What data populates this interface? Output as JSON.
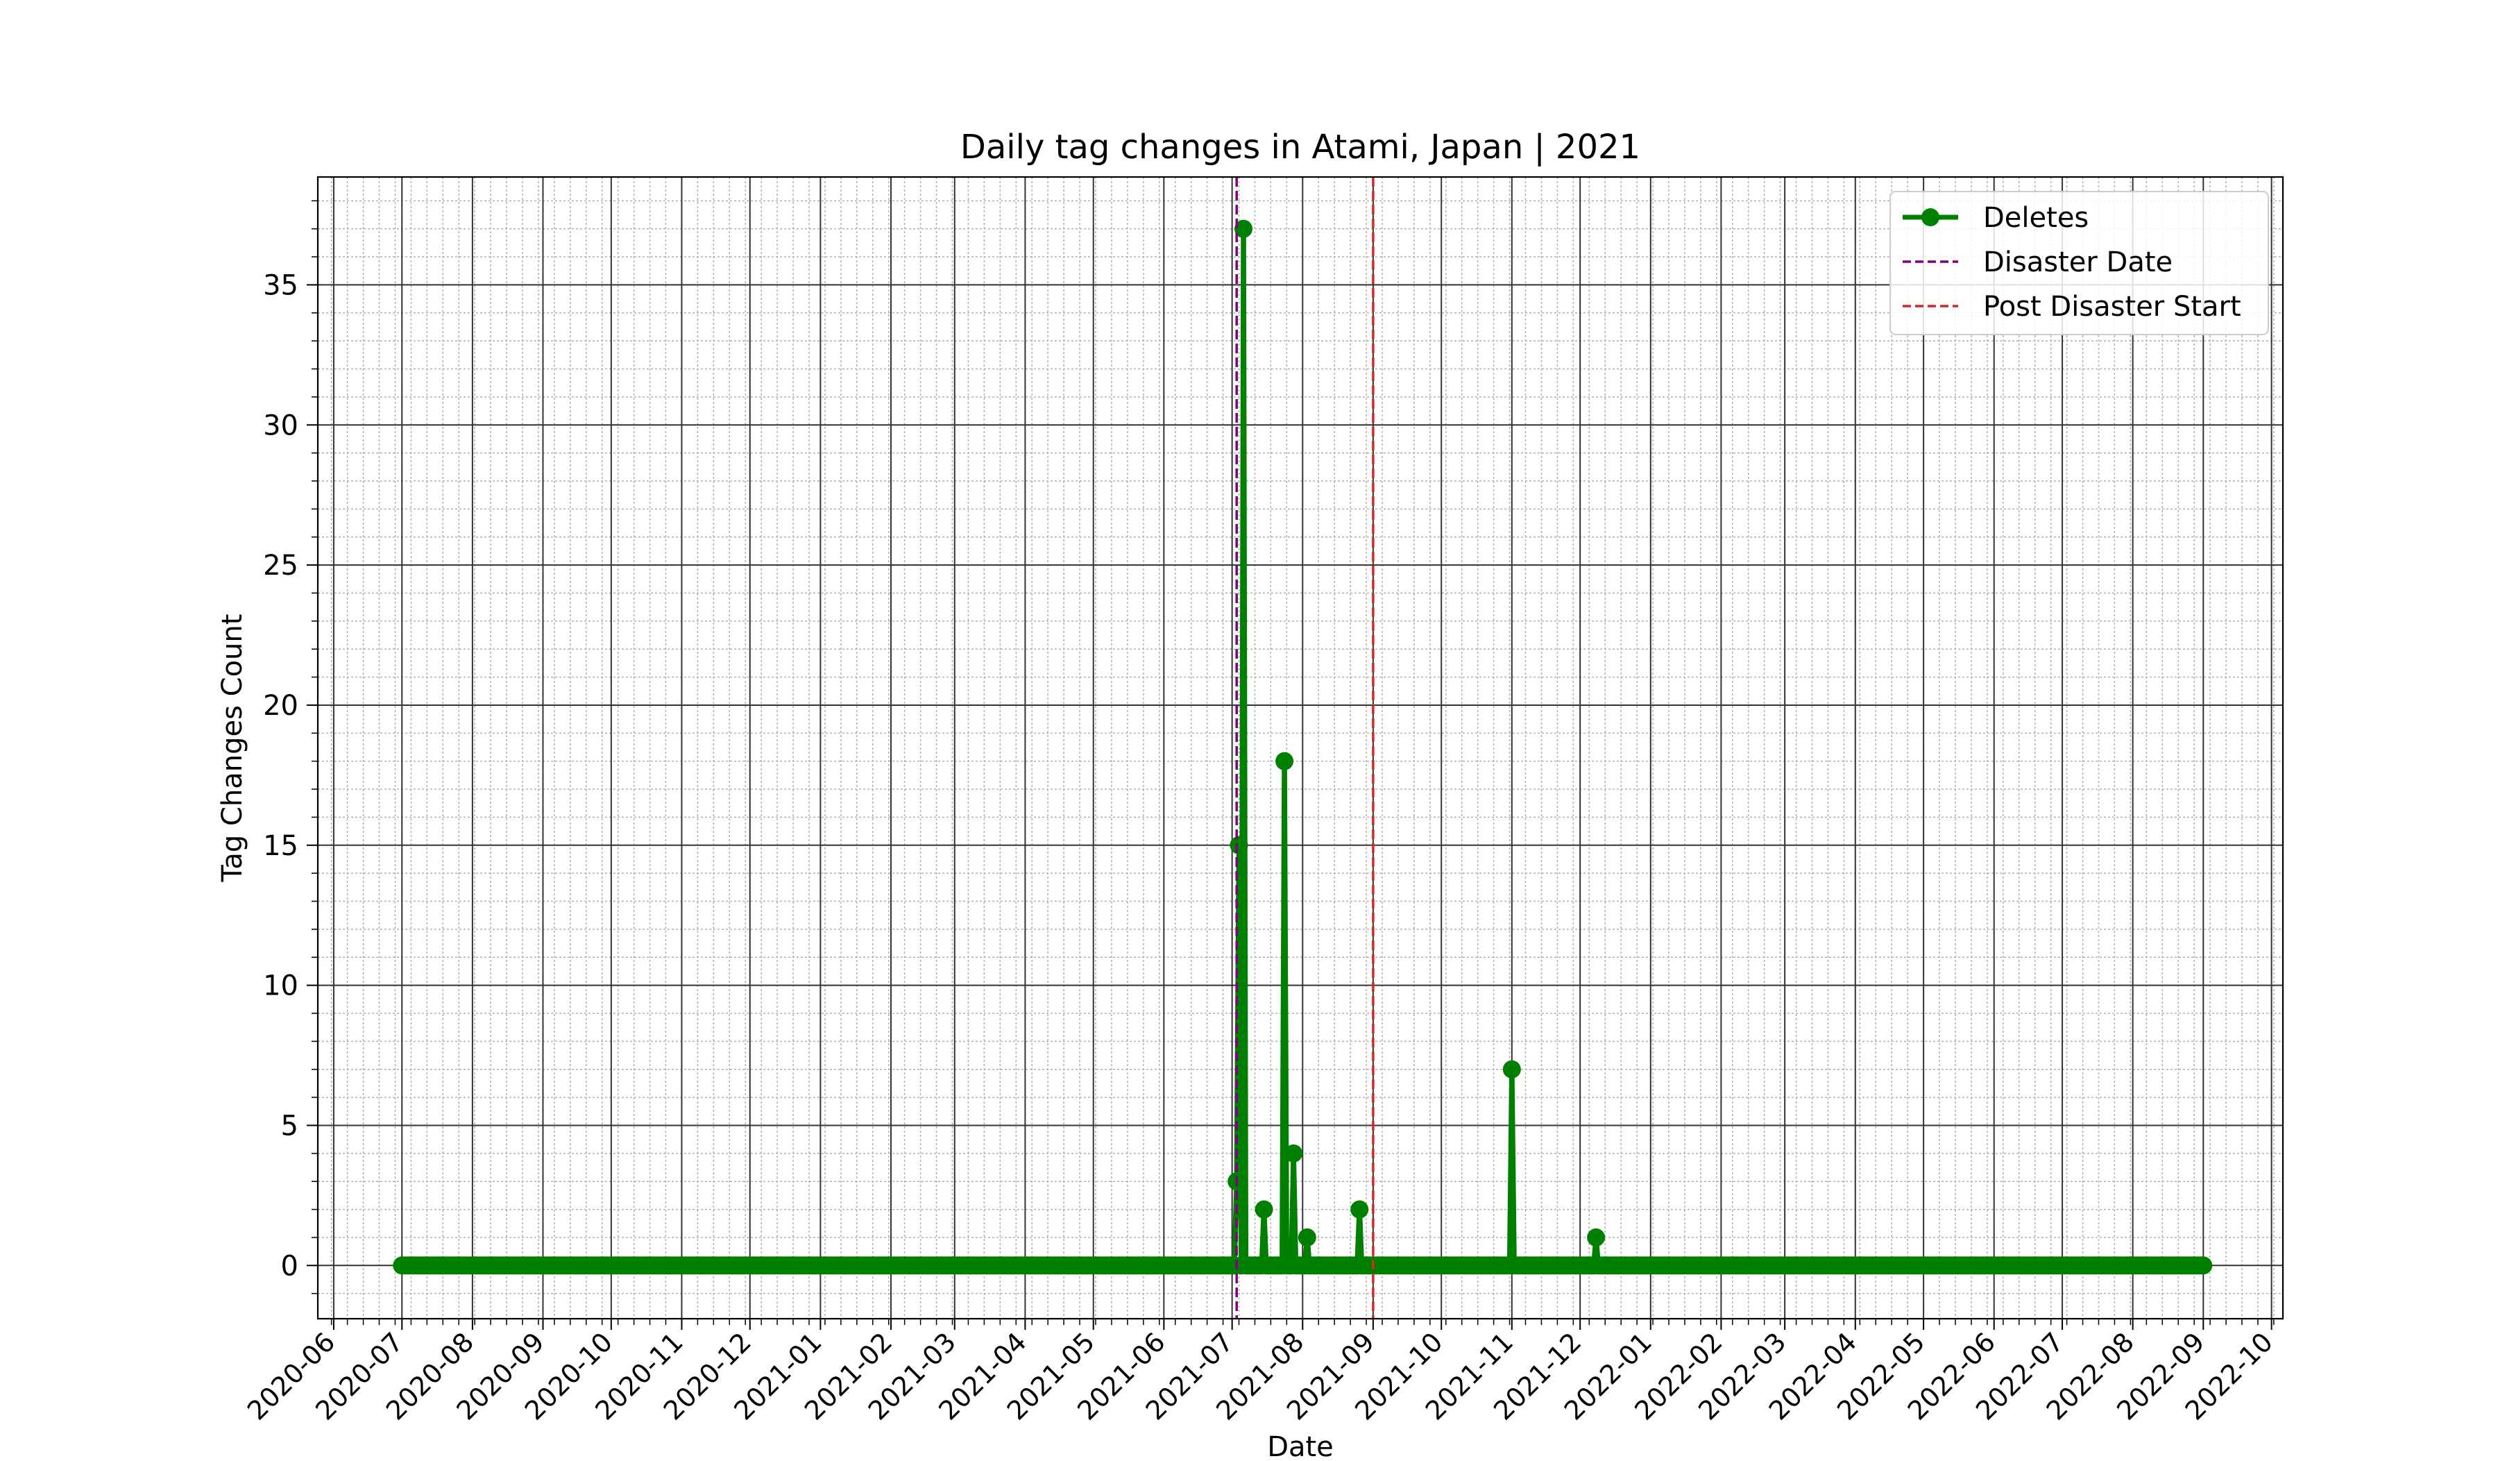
{
  "chart_data": {
    "type": "line",
    "title": "Daily tag changes in Atami, Japan | 2021",
    "xlabel": "Date",
    "ylabel": "Tag Changes Count",
    "xlim": [
      "2020-05-25",
      "2022-10-06"
    ],
    "ylim": [
      -1.9,
      38.85
    ],
    "x_range_daily": [
      "2020-07-01",
      "2022-09-01"
    ],
    "baseline_value": 0,
    "x_ticks": [
      "2020-06",
      "2020-07",
      "2020-08",
      "2020-09",
      "2020-10",
      "2020-11",
      "2020-12",
      "2021-01",
      "2021-02",
      "2021-03",
      "2021-04",
      "2021-05",
      "2021-06",
      "2021-07",
      "2021-08",
      "2021-09",
      "2021-10",
      "2021-11",
      "2021-12",
      "2022-01",
      "2022-02",
      "2022-03",
      "2022-04",
      "2022-05",
      "2022-06",
      "2022-07",
      "2022-08",
      "2022-09",
      "2022-10"
    ],
    "y_ticks": [
      0,
      5,
      10,
      15,
      20,
      25,
      30,
      35
    ],
    "y_minor_step": 1,
    "grid": true,
    "legend_position": "top-right",
    "series": [
      {
        "name": "Deletes",
        "color": "#008000",
        "marker": "circle",
        "nonzero_points": [
          {
            "x": "2021-07-03",
            "y": 3
          },
          {
            "x": "2021-07-04",
            "y": 15
          },
          {
            "x": "2021-07-06",
            "y": 37
          },
          {
            "x": "2021-07-15",
            "y": 2
          },
          {
            "x": "2021-07-24",
            "y": 18
          },
          {
            "x": "2021-07-28",
            "y": 4
          },
          {
            "x": "2021-08-03",
            "y": 1
          },
          {
            "x": "2021-08-26",
            "y": 2
          },
          {
            "x": "2021-11-01",
            "y": 7
          },
          {
            "x": "2021-12-08",
            "y": 1
          }
        ]
      }
    ],
    "vlines": [
      {
        "name": "Disaster Date",
        "x": "2021-07-03",
        "color": "#800080",
        "style": "dashed"
      },
      {
        "name": "Post Disaster Start",
        "x": "2021-09-01",
        "color": "#d62728",
        "style": "dashed"
      }
    ]
  }
}
